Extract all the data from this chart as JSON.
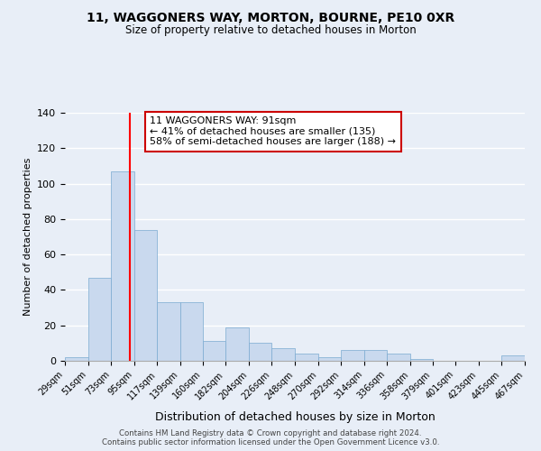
{
  "title": "11, WAGGONERS WAY, MORTON, BOURNE, PE10 0XR",
  "subtitle": "Size of property relative to detached houses in Morton",
  "xlabel": "Distribution of detached houses by size in Morton",
  "ylabel": "Number of detached properties",
  "bar_color": "#c9d9ee",
  "bar_edge_color": "#7aaad0",
  "background_color": "#e8eef7",
  "grid_color": "#ffffff",
  "red_line_x": 91,
  "annotation_text": "11 WAGGONERS WAY: 91sqm\n← 41% of detached houses are smaller (135)\n58% of semi-detached houses are larger (188) →",
  "bin_edges": [
    29,
    51,
    73,
    95,
    117,
    139,
    160,
    182,
    204,
    226,
    248,
    270,
    292,
    314,
    336,
    358,
    379,
    401,
    423,
    445,
    467
  ],
  "bin_labels": [
    "29sqm",
    "51sqm",
    "73sqm",
    "95sqm",
    "117sqm",
    "139sqm",
    "160sqm",
    "182sqm",
    "204sqm",
    "226sqm",
    "248sqm",
    "270sqm",
    "292sqm",
    "314sqm",
    "336sqm",
    "358sqm",
    "379sqm",
    "401sqm",
    "423sqm",
    "445sqm",
    "467sqm"
  ],
  "counts": [
    2,
    47,
    107,
    74,
    33,
    33,
    11,
    19,
    10,
    7,
    4,
    2,
    6,
    6,
    4,
    1,
    0,
    0,
    0,
    3
  ],
  "ylim": [
    0,
    140
  ],
  "yticks": [
    0,
    20,
    40,
    60,
    80,
    100,
    120,
    140
  ],
  "footer1": "Contains HM Land Registry data © Crown copyright and database right 2024.",
  "footer2": "Contains public sector information licensed under the Open Government Licence v3.0."
}
